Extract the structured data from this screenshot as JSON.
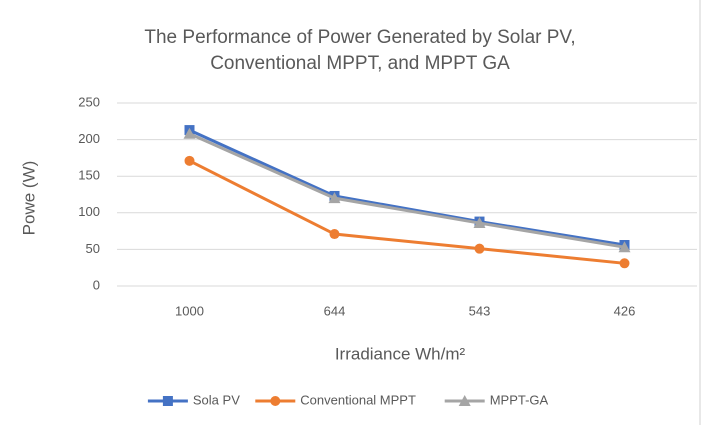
{
  "chart_data": {
    "type": "line",
    "title": [
      "The Performance of Power Generated by Solar PV,",
      "Conventional MPPT, and MPPT GA"
    ],
    "x_label": "Irradiance Wh/m²",
    "y_label": "Powe (W)",
    "categories": [
      "1000",
      "644",
      "543",
      "426"
    ],
    "series": [
      {
        "name": "Sola PV",
        "color": "#4472c4",
        "marker": "square",
        "values": [
          213,
          123,
          88,
          56
        ]
      },
      {
        "name": "Conventional MPPT",
        "color": "#ed7d31",
        "marker": "circle",
        "values": [
          171,
          71,
          51,
          31
        ]
      },
      {
        "name": "MPPT-GA",
        "color": "#a5a5a5",
        "marker": "triangle",
        "values": [
          208,
          120,
          86,
          53
        ]
      }
    ],
    "ylim": [
      0,
      250
    ],
    "yticks": [
      0,
      50,
      100,
      150,
      200,
      250
    ],
    "grid": true,
    "legend": "bottom"
  }
}
